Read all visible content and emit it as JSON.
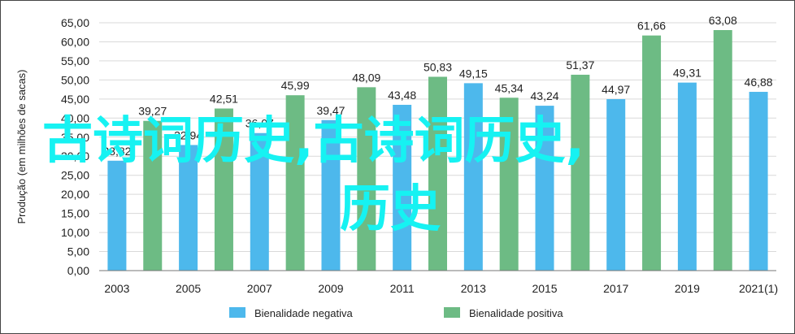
{
  "chart_data": {
    "type": "bar",
    "ylabel": "Produção (em milhões de sacas)",
    "ylim": [
      0,
      65
    ],
    "ytick_step": 5,
    "y_ticks": [
      "0,00",
      "5,00",
      "10,00",
      "15,00",
      "20,00",
      "25,00",
      "30,00",
      "35,00",
      "40,00",
      "45,00",
      "50,00",
      "55,00",
      "60,00",
      "65,00"
    ],
    "x_tick_labels": [
      "2003",
      "2005",
      "2007",
      "2009",
      "2011",
      "2013",
      "2015",
      "2017",
      "2019",
      "2021(1)"
    ],
    "grid": true,
    "legend_position": "bottom",
    "series": [
      {
        "name": "Bienalidade negativa",
        "color": "#4db8ec",
        "values": [
          28.82,
          32.94,
          36.07,
          39.47,
          43.48,
          49.15,
          43.24,
          44.97,
          49.31,
          46.88
        ],
        "labels": [
          "28,82",
          "32,94",
          "36,07",
          "39,47",
          "43,48",
          "49,15",
          "43,24",
          "44,97",
          "49,31",
          "46,88"
        ]
      },
      {
        "name": "Bienalidade positiva",
        "color": "#6dbb84",
        "values": [
          39.27,
          42.51,
          45.99,
          48.09,
          50.83,
          45.34,
          51.37,
          61.66,
          63.08
        ],
        "labels": [
          "39,27",
          "42,51",
          "45,99",
          "48,09",
          "50,83",
          "45,34",
          "51,37",
          "61,66",
          "63,08"
        ]
      }
    ]
  },
  "overlay": {
    "line1": "古诗词历史,古诗词历史,",
    "line2": "历史"
  }
}
